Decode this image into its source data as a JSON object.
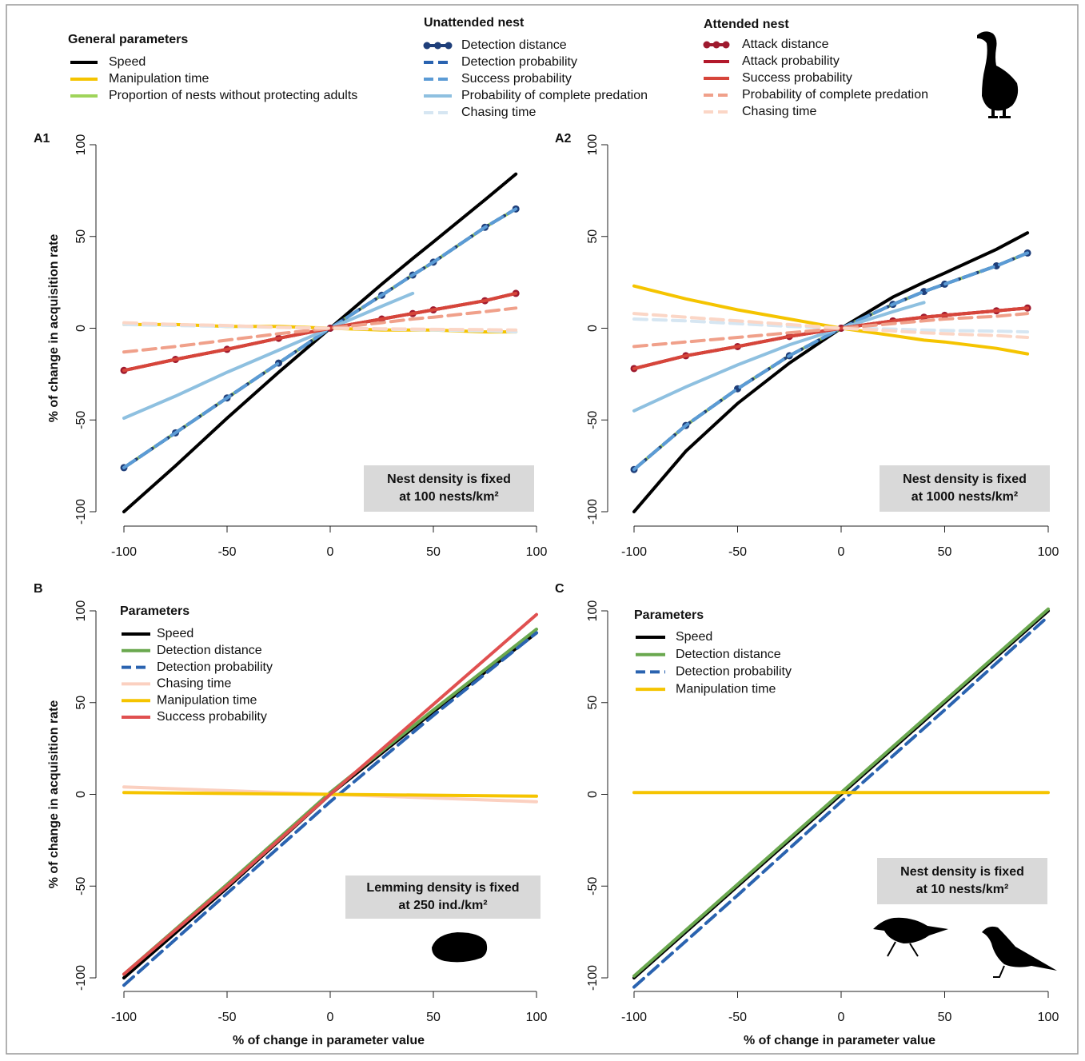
{
  "chart_data": [
    {
      "type": "line",
      "label": "A1",
      "ylabel": "% of change in acquisition rate",
      "annotation": [
        "Nest density is fixed",
        "at 100 nests/km²"
      ],
      "x": [
        -100,
        -75,
        -50,
        -25,
        0,
        25,
        40,
        50,
        75,
        90
      ],
      "xlim": [
        -100,
        100
      ],
      "xticks": [
        -100,
        -50,
        0,
        50,
        100
      ],
      "ylim": [
        -100,
        100
      ],
      "yticks": [
        -100,
        -50,
        0,
        50,
        100
      ],
      "series_groups": [
        {
          "title": "General parameters",
          "series": [
            {
              "name": "Speed",
              "color": "#000000",
              "style": "solid",
              "values": [
                -100,
                -75,
                -49,
                -24,
                0,
                24,
                38,
                47,
                70,
                84
              ]
            },
            {
              "name": "Manipulation time",
              "color": "#f5c400",
              "style": "solid",
              "values": [
                2,
                2,
                1,
                1,
                0,
                -1,
                -1,
                -1,
                -2,
                -2
              ]
            },
            {
              "name": "Proportion of nests without protecting adults",
              "color": "#9fd45a",
              "style": "solid",
              "values": [
                -76,
                -57,
                -38,
                -19,
                0,
                18,
                29,
                36,
                55,
                65
              ]
            }
          ]
        },
        {
          "title": "Unattended nest",
          "series": [
            {
              "name": "Detection distance",
              "color": "#1f3f7a",
              "style": "markers",
              "values": [
                -76,
                -57,
                -38,
                -19,
                0,
                18,
                29,
                36,
                55,
                65
              ]
            },
            {
              "name": "Detection probability",
              "color": "#2a63b0",
              "style": "dashed",
              "values": [
                -76,
                -57,
                -38,
                -19,
                0,
                18,
                29,
                36,
                55,
                65
              ]
            },
            {
              "name": "Success probability",
              "color": "#5b9bd5",
              "style": "dashed",
              "values": [
                -76,
                -57,
                -38,
                -19,
                0,
                18,
                29,
                36,
                55,
                65
              ]
            },
            {
              "name": "Probability of complete predation",
              "color": "#8ec0e0",
              "style": "solid",
              "values": [
                -49,
                -37,
                -24,
                -12,
                0,
                12,
                19,
                null,
                null,
                null
              ]
            },
            {
              "name": "Chasing time",
              "color": "#d6e6f2",
              "style": "dashed",
              "values": [
                2,
                1.5,
                1,
                0.5,
                0,
                -0.5,
                -0.8,
                -1,
                -1.5,
                -2
              ]
            }
          ]
        },
        {
          "title": "Attended nest",
          "series": [
            {
              "name": "Attack distance",
              "color": "#9e1a2e",
              "style": "markers",
              "values": [
                -23,
                -17,
                -11.5,
                -5.5,
                0,
                5,
                8,
                10,
                15,
                19
              ]
            },
            {
              "name": "Attack probability",
              "color": "#b2182b",
              "style": "solid",
              "values": [
                -23,
                -17,
                -11.5,
                -5.5,
                0,
                5,
                8,
                10,
                15,
                19
              ]
            },
            {
              "name": "Success probability",
              "color": "#d6453a",
              "style": "solid",
              "values": [
                -23,
                -17,
                -11.5,
                -5.5,
                0,
                5,
                8,
                10,
                15,
                19
              ]
            },
            {
              "name": "Probability of complete predation",
              "color": "#f0a08a",
              "style": "dashed",
              "values": [
                -13,
                -10,
                -6.5,
                -3,
                0,
                3,
                5,
                6,
                9,
                11
              ]
            },
            {
              "name": "Chasing time",
              "color": "#fbd6c6",
              "style": "dashed",
              "values": [
                3,
                2,
                1.5,
                0.5,
                0,
                -0.3,
                -0.5,
                -0.6,
                -0.8,
                -1
              ]
            }
          ]
        }
      ]
    },
    {
      "type": "line",
      "label": "A2",
      "annotation": [
        "Nest density is fixed",
        "at 1000 nests/km²"
      ],
      "x": [
        -100,
        -75,
        -50,
        -25,
        0,
        25,
        40,
        50,
        75,
        90
      ],
      "xlim": [
        -100,
        100
      ],
      "xticks": [
        -100,
        -50,
        0,
        50,
        100
      ],
      "ylim": [
        -100,
        100
      ],
      "yticks": [
        -100,
        -50,
        0,
        50,
        100
      ],
      "series": [
        {
          "color": "#000000",
          "style": "solid",
          "values": [
            -100,
            -67,
            -41,
            -19,
            0,
            17,
            25,
            30,
            43,
            52
          ]
        },
        {
          "color": "#f5c400",
          "style": "solid",
          "values": [
            23,
            16,
            10,
            5,
            0,
            -4,
            -6.5,
            -7.5,
            -11,
            -14
          ]
        },
        {
          "color": "#9fd45a",
          "style": "solid",
          "values": [
            -77,
            -53,
            -33,
            -15,
            0,
            13,
            20,
            24,
            34,
            41
          ]
        },
        {
          "color": "#1f3f7a",
          "style": "markers",
          "values": [
            -77,
            -53,
            -33,
            -15,
            0,
            13,
            20,
            24,
            34,
            41
          ]
        },
        {
          "color": "#2a63b0",
          "style": "dashed",
          "values": [
            -77,
            -53,
            -33,
            -15,
            0,
            13,
            20,
            24,
            34,
            41
          ]
        },
        {
          "color": "#5b9bd5",
          "style": "dashed",
          "values": [
            -77,
            -53,
            -33,
            -15,
            0,
            13,
            20,
            24,
            34,
            41
          ]
        },
        {
          "color": "#8ec0e0",
          "style": "solid",
          "values": [
            -45,
            -32,
            -20,
            -9,
            0,
            9,
            14,
            null,
            null,
            null
          ]
        },
        {
          "color": "#d6e6f2",
          "style": "dashed",
          "values": [
            5,
            4,
            2.5,
            1,
            0,
            -0.5,
            -1,
            -1.2,
            -1.6,
            -2
          ]
        },
        {
          "color": "#9e1a2e",
          "style": "markers",
          "values": [
            -22,
            -15,
            -10,
            -4.5,
            0,
            4,
            6,
            7,
            9.5,
            11
          ]
        },
        {
          "color": "#b2182b",
          "style": "solid",
          "values": [
            -22,
            -15,
            -10,
            -4.5,
            0,
            4,
            6,
            7,
            9.5,
            11
          ]
        },
        {
          "color": "#d6453a",
          "style": "solid",
          "values": [
            -22,
            -15,
            -10,
            -4.5,
            0,
            4,
            6,
            7,
            9.5,
            11
          ]
        },
        {
          "color": "#f0a08a",
          "style": "dashed",
          "values": [
            -10,
            -7.5,
            -5,
            -2.5,
            0,
            2.5,
            4,
            5,
            6.5,
            8
          ]
        },
        {
          "color": "#fbd6c6",
          "style": "dashed",
          "values": [
            8,
            6,
            4,
            2,
            0,
            -1.5,
            -2.5,
            -3,
            -4,
            -5
          ]
        }
      ]
    },
    {
      "type": "line",
      "label": "B",
      "ylabel": "% of change in acquisition rate",
      "xlabel": "% of change in parameter value",
      "legend_title": "Parameters",
      "annotation": [
        "Lemming density is fixed",
        "at 250 ind./km²"
      ],
      "x": [
        -100,
        -50,
        0,
        50,
        100
      ],
      "xlim": [
        -100,
        100
      ],
      "xticks": [
        -100,
        -50,
        0,
        50,
        100
      ],
      "ylim": [
        -100,
        100
      ],
      "yticks": [
        -100,
        -50,
        0,
        50,
        100
      ],
      "series": [
        {
          "name": "Speed",
          "color": "#000000",
          "style": "solid",
          "values": [
            -100,
            -51,
            0,
            45,
            88
          ]
        },
        {
          "name": "Detection distance",
          "color": "#6aa84f",
          "style": "solid",
          "values": [
            -98,
            -49,
            1,
            46,
            90
          ]
        },
        {
          "name": "Detection probability",
          "color": "#2a63b0",
          "style": "dashed",
          "values": [
            -104,
            -54,
            -4,
            43,
            88
          ]
        },
        {
          "name": "Chasing time",
          "color": "#fbd0c0",
          "style": "solid",
          "values": [
            4,
            2,
            0,
            -2,
            -4
          ]
        },
        {
          "name": "Manipulation time",
          "color": "#f5c400",
          "style": "solid",
          "values": [
            1,
            0.5,
            0,
            -0.5,
            -1
          ]
        },
        {
          "name": "Success probability",
          "color": "#e05050",
          "style": "solid",
          "values": [
            -98,
            -50,
            0,
            49,
            98
          ]
        }
      ]
    },
    {
      "type": "line",
      "label": "C",
      "xlabel": "% of change in parameter value",
      "legend_title": "Parameters",
      "annotation": [
        "Nest density is fixed",
        "at 10 nests/km²"
      ],
      "x": [
        -100,
        -50,
        0,
        50,
        100
      ],
      "xlim": [
        -100,
        100
      ],
      "xticks": [
        -100,
        -50,
        0,
        50,
        100
      ],
      "ylim": [
        -100,
        100
      ],
      "yticks": [
        -100,
        -50,
        0,
        50,
        100
      ],
      "series": [
        {
          "name": "Speed",
          "color": "#000000",
          "style": "solid",
          "values": [
            -100,
            -50,
            0,
            50,
            100
          ]
        },
        {
          "name": "Detection distance",
          "color": "#6aa84f",
          "style": "solid",
          "values": [
            -99,
            -49,
            1,
            51,
            101
          ]
        },
        {
          "name": "Detection probability",
          "color": "#2a63b0",
          "style": "dashed",
          "values": [
            -105,
            -55,
            -4,
            46,
            97
          ]
        },
        {
          "name": "Manipulation time",
          "color": "#f5c400",
          "style": "solid",
          "values": [
            1,
            1,
            1,
            1,
            1
          ]
        }
      ]
    }
  ]
}
